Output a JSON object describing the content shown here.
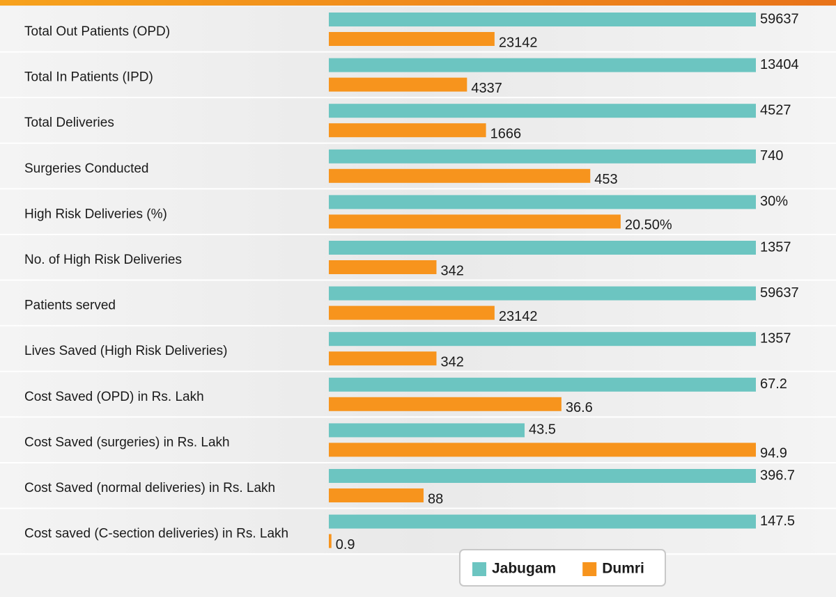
{
  "chart_data": {
    "type": "bar",
    "categories": [
      "Total Out Patients (OPD)",
      "Total In Patients (IPD)",
      "Total Deliveries",
      "Surgeries Conducted",
      "High Risk Deliveries (%)",
      "No. of High Risk Deliveries",
      "Patients served",
      "Lives Saved (High Risk Deliveries)",
      "Cost Saved (OPD) in Rs. Lakh",
      "Cost Saved (surgeries) in Rs. Lakh",
      "Cost Saved (normal deliveries) in Rs. Lakh",
      "Cost saved (C-section deliveries) in Rs. Lakh"
    ],
    "series": [
      {
        "name": "Jabugam",
        "color": "#6cc5c1",
        "values": [
          59637,
          13404,
          4527,
          740,
          30,
          1357,
          59637,
          1357,
          67.2,
          43.5,
          396.7,
          147.5
        ],
        "value_labels": [
          "59637",
          "13404",
          "4527",
          "740",
          "30%",
          "1357",
          "59637",
          "1357",
          "67.2",
          "43.5",
          "396.7",
          "147.5"
        ]
      },
      {
        "name": "Dumri",
        "color": "#f7941d",
        "values": [
          23142,
          4337,
          1666,
          453,
          20.5,
          342,
          23142,
          342,
          36.6,
          94.9,
          88,
          0.9
        ],
        "value_labels": [
          "23142",
          "4337",
          "1666",
          "453",
          "20.50%",
          "342",
          "23142",
          "342",
          "36.6",
          "94.9",
          "88",
          "0.9"
        ]
      }
    ],
    "legend": "bottom-right"
  }
}
